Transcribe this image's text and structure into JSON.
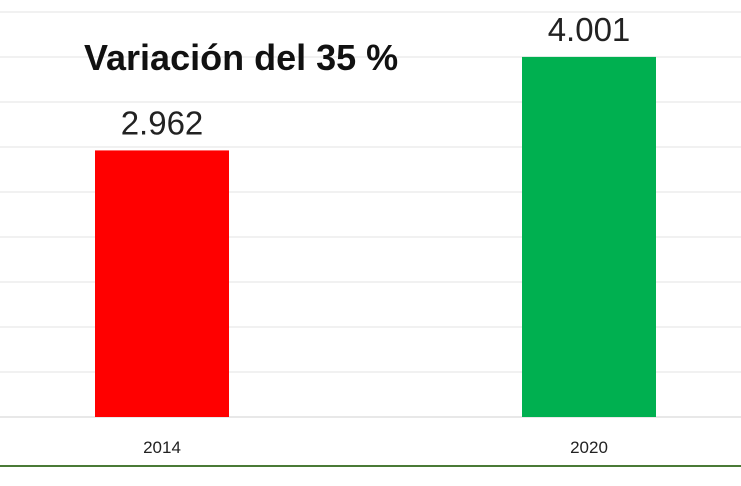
{
  "chart_data": {
    "type": "bar",
    "categories": [
      "2014",
      "2020"
    ],
    "values": [
      2.962,
      4.001
    ],
    "value_labels": [
      "2.962",
      "4.001"
    ],
    "colors": [
      "#ff0000",
      "#00b050"
    ],
    "ylim": [
      0,
      4.5
    ],
    "grid": true,
    "annotation": "Variación del 35 %"
  }
}
